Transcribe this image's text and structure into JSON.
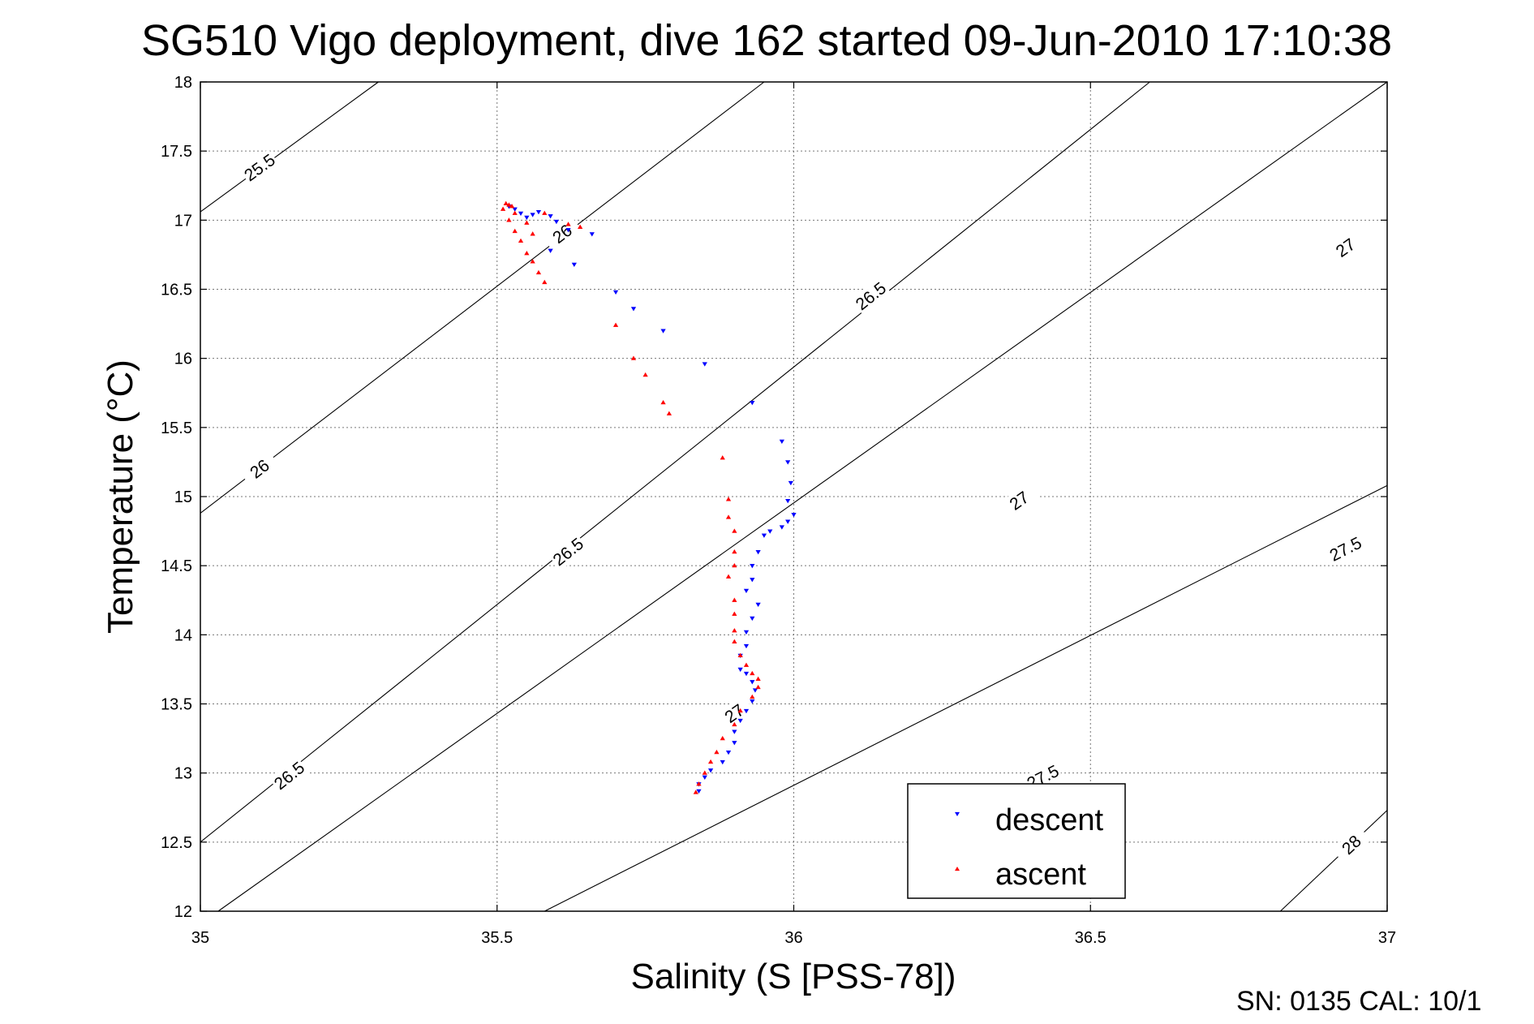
{
  "chart_data": {
    "type": "scatter",
    "title": "SG510 Vigo deployment, dive 162 started 09-Jun-2010 17:10:38",
    "xlabel": "Salinity (S [PSS-78])",
    "ylabel": "Temperature (°C)",
    "xlim": [
      35,
      37
    ],
    "ylim": [
      12,
      18
    ],
    "xticks": [
      "35",
      "35.5",
      "36",
      "36.5",
      "37"
    ],
    "yticks": [
      "12",
      "12.5",
      "13",
      "13.5",
      "14",
      "14.5",
      "15",
      "15.5",
      "16",
      "16.5",
      "17",
      "17.5",
      "18"
    ],
    "grid": true,
    "legend_position": "bottom-right",
    "footer": "SN: 0135  CAL: 10/1",
    "density_contours": [
      {
        "level": "25.5",
        "points": [
          [
            35.0,
            17.06
          ],
          [
            35.3,
            18.0
          ]
        ],
        "labels": [
          [
            35.1,
            17.38
          ]
        ]
      },
      {
        "level": "26",
        "points": [
          [
            35.0,
            14.88
          ],
          [
            35.95,
            18.0
          ]
        ],
        "labels": [
          [
            35.1,
            15.2
          ],
          [
            35.61,
            16.9
          ]
        ]
      },
      {
        "level": "26.5",
        "points": [
          [
            35.0,
            12.5
          ],
          [
            36.6,
            18.0
          ]
        ],
        "labels": [
          [
            35.15,
            12.98
          ],
          [
            35.62,
            14.6
          ],
          [
            36.13,
            16.45
          ]
        ]
      },
      {
        "level": "27",
        "points": [
          [
            35.03,
            12.0
          ],
          [
            37.0,
            18.0
          ]
        ],
        "labels": [
          [
            35.9,
            13.43
          ],
          [
            36.38,
            14.97
          ],
          [
            36.93,
            16.8
          ]
        ]
      },
      {
        "level": "27.5",
        "points": [
          [
            35.58,
            12.0
          ],
          [
            37.0,
            15.08
          ]
        ],
        "labels": [
          [
            36.42,
            12.97
          ],
          [
            36.93,
            14.62
          ]
        ]
      },
      {
        "level": "28",
        "points": [
          [
            36.82,
            12.0
          ],
          [
            37.0,
            12.73
          ]
        ],
        "labels": [
          [
            36.94,
            12.48
          ]
        ]
      }
    ],
    "series": [
      {
        "name": "descent",
        "color": "#0000ff",
        "marker": "triangle-down",
        "points": [
          [
            35.52,
            17.1
          ],
          [
            35.53,
            17.08
          ],
          [
            35.54,
            17.05
          ],
          [
            35.55,
            17.02
          ],
          [
            35.56,
            17.04
          ],
          [
            35.57,
            17.06
          ],
          [
            35.59,
            17.03
          ],
          [
            35.6,
            16.99
          ],
          [
            35.62,
            16.93
          ],
          [
            35.66,
            16.9
          ],
          [
            35.59,
            16.78
          ],
          [
            35.63,
            16.68
          ],
          [
            35.7,
            16.48
          ],
          [
            35.73,
            16.36
          ],
          [
            35.78,
            16.2
          ],
          [
            35.85,
            15.96
          ],
          [
            35.93,
            15.68
          ],
          [
            35.98,
            15.4
          ],
          [
            35.99,
            15.25
          ],
          [
            35.995,
            15.1
          ],
          [
            35.99,
            14.97
          ],
          [
            36.0,
            14.87
          ],
          [
            35.99,
            14.82
          ],
          [
            35.98,
            14.78
          ],
          [
            35.96,
            14.75
          ],
          [
            35.95,
            14.72
          ],
          [
            35.94,
            14.6
          ],
          [
            35.93,
            14.5
          ],
          [
            35.93,
            14.4
          ],
          [
            35.92,
            14.32
          ],
          [
            35.94,
            14.22
          ],
          [
            35.93,
            14.12
          ],
          [
            35.92,
            14.02
          ],
          [
            35.92,
            13.92
          ],
          [
            35.91,
            13.85
          ],
          [
            35.91,
            13.75
          ],
          [
            35.92,
            13.72
          ],
          [
            35.93,
            13.66
          ],
          [
            35.935,
            13.6
          ],
          [
            35.93,
            13.52
          ],
          [
            35.92,
            13.45
          ],
          [
            35.91,
            13.38
          ],
          [
            35.9,
            13.3
          ],
          [
            35.9,
            13.22
          ],
          [
            35.89,
            13.15
          ],
          [
            35.88,
            13.08
          ],
          [
            35.86,
            13.02
          ],
          [
            35.85,
            12.97
          ],
          [
            35.84,
            12.92
          ],
          [
            35.84,
            12.87
          ]
        ]
      },
      {
        "name": "ascent",
        "color": "#ff0000",
        "marker": "triangle-up",
        "points": [
          [
            35.51,
            17.08
          ],
          [
            35.515,
            17.12
          ],
          [
            35.52,
            17.11
          ],
          [
            35.525,
            17.1
          ],
          [
            35.53,
            17.05
          ],
          [
            35.52,
            17.0
          ],
          [
            35.53,
            16.92
          ],
          [
            35.54,
            16.85
          ],
          [
            35.55,
            16.76
          ],
          [
            35.56,
            16.7
          ],
          [
            35.57,
            16.62
          ],
          [
            35.58,
            16.55
          ],
          [
            35.56,
            16.9
          ],
          [
            35.55,
            16.98
          ],
          [
            35.58,
            17.05
          ],
          [
            35.62,
            16.97
          ],
          [
            35.64,
            16.95
          ],
          [
            35.7,
            16.24
          ],
          [
            35.73,
            16.0
          ],
          [
            35.75,
            15.88
          ],
          [
            35.79,
            15.6
          ],
          [
            35.78,
            15.68
          ],
          [
            35.88,
            15.28
          ],
          [
            35.89,
            14.98
          ],
          [
            35.89,
            14.85
          ],
          [
            35.9,
            14.75
          ],
          [
            35.9,
            14.6
          ],
          [
            35.9,
            14.5
          ],
          [
            35.89,
            14.42
          ],
          [
            35.9,
            14.25
          ],
          [
            35.9,
            14.15
          ],
          [
            35.9,
            14.03
          ],
          [
            35.9,
            13.95
          ],
          [
            35.91,
            13.85
          ],
          [
            35.92,
            13.78
          ],
          [
            35.93,
            13.72
          ],
          [
            35.94,
            13.68
          ],
          [
            35.94,
            13.62
          ],
          [
            35.93,
            13.55
          ],
          [
            35.91,
            13.45
          ],
          [
            35.9,
            13.35
          ],
          [
            35.88,
            13.25
          ],
          [
            35.87,
            13.15
          ],
          [
            35.86,
            13.08
          ],
          [
            35.85,
            13.0
          ],
          [
            35.84,
            12.92
          ],
          [
            35.835,
            12.86
          ]
        ]
      }
    ]
  }
}
